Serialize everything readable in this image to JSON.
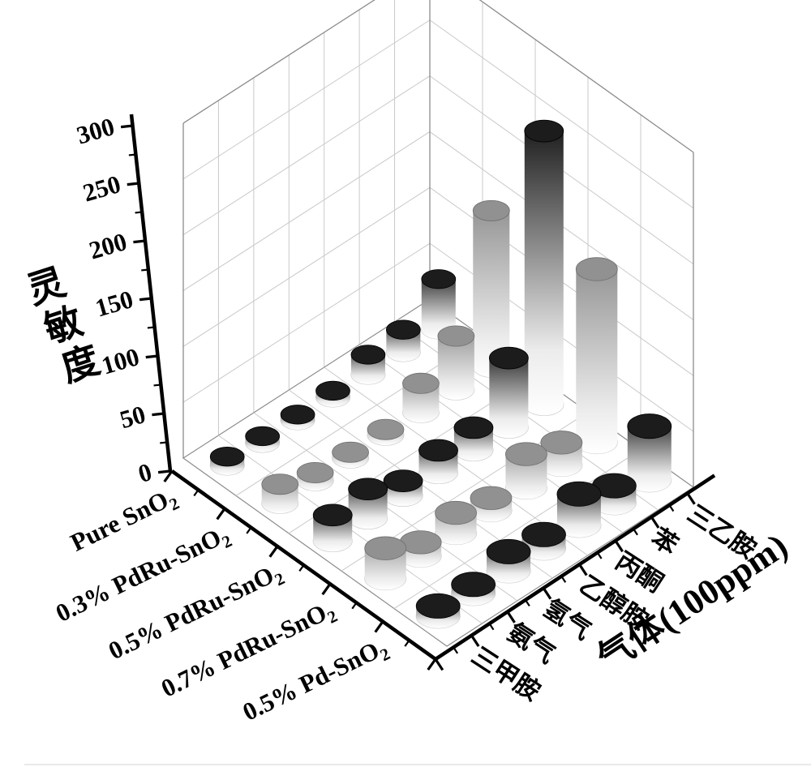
{
  "figure": {
    "kind": "3d-cylinder-bar-chart",
    "background": "#ffffff"
  },
  "chart_data": {
    "type": "bar",
    "subtype": "3d-cylinder",
    "title": "",
    "z_axis": {
      "label": "灵敏度",
      "min": 0,
      "max": 300,
      "tick_step": 50,
      "minor_tick_step": 25,
      "tick_labels": [
        "0",
        "50",
        "100",
        "150",
        "200",
        "250",
        "300"
      ]
    },
    "gas_axis": {
      "label": "气体(100ppm)",
      "categories": [
        "三甲胺",
        "氨气",
        "氢气",
        "乙醇胺",
        "丙酮",
        "苯",
        "三乙胺"
      ]
    },
    "material_axis": {
      "categories": [
        {
          "main": "Pure SnO",
          "sub": "2"
        },
        {
          "main": "0.3% PdRu-SnO",
          "sub": "2"
        },
        {
          "main": "0.5% PdRu-SnO",
          "sub": "2"
        },
        {
          "main": "0.7% PdRu-SnO",
          "sub": "2"
        },
        {
          "main": "0.5% Pd-SnO",
          "sub": "2"
        }
      ]
    },
    "series": [
      {
        "name": "Pure SnO2",
        "color": "#161616",
        "values": [
          8,
          6,
          5,
          6,
          18,
          20,
          45
        ]
      },
      {
        "name": "0.3% PdRu-SnO2",
        "color": "#8f8f8f",
        "values": [
          17,
          7,
          5,
          5,
          26,
          48,
          140
        ]
      },
      {
        "name": "0.5% PdRu-SnO2",
        "color": "#161616",
        "values": [
          23,
          26,
          13,
          20,
          20,
          62,
          245
        ]
      },
      {
        "name": "0.7% PdRu-SnO2",
        "color": "#8f8f8f",
        "values": [
          27,
          12,
          18,
          11,
          30,
          20,
          155
        ]
      },
      {
        "name": "0.5% Pd-SnO2",
        "color": "#161616",
        "values": [
          9,
          8,
          17,
          12,
          28,
          15,
          48
        ]
      }
    ],
    "grid": true,
    "legend": "none"
  },
  "colors": {
    "background": "#ffffff",
    "wall_grid": "#c9c9c9",
    "wall_edge": "#8c8c8c",
    "floor_ring": "#c4c4c4",
    "axis": "#000000",
    "bar_dark": "#161616",
    "bar_light": "#8f8f8f"
  }
}
